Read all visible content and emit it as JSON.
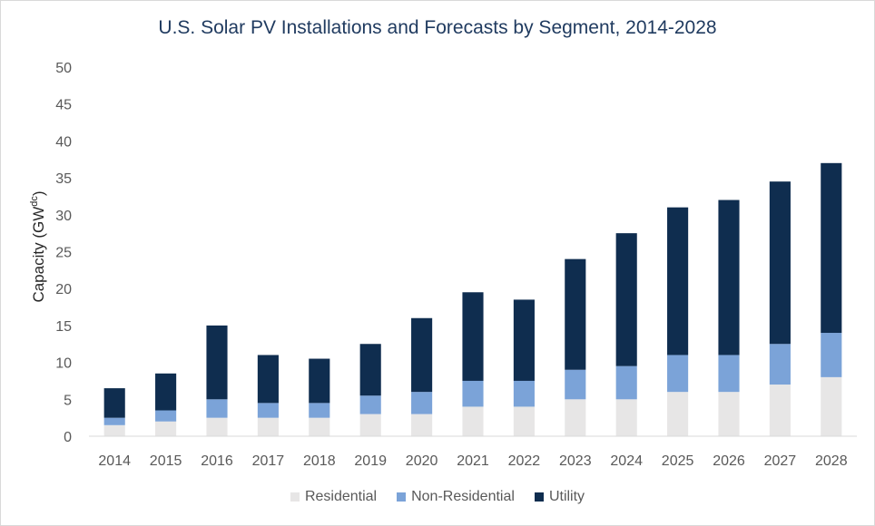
{
  "chart_data": {
    "type": "bar",
    "stacked": true,
    "title": "U.S. Solar PV Installations and Forecasts by Segment, 2014-2028",
    "ylabel": "Capacity (GW",
    "ylabel_superscript": "dc",
    "ylabel_close": ")",
    "xlabel": "",
    "ylim": [
      0,
      50
    ],
    "yticks": [
      0,
      5,
      10,
      15,
      20,
      25,
      30,
      35,
      40,
      45,
      50
    ],
    "grid": false,
    "legend_position": "bottom",
    "categories": [
      "2014",
      "2015",
      "2016",
      "2017",
      "2018",
      "2019",
      "2020",
      "2021",
      "2022",
      "2023",
      "2024",
      "2025",
      "2026",
      "2027",
      "2028"
    ],
    "series": [
      {
        "name": "Residential",
        "color": "#e7e6e6",
        "values": [
          1.5,
          2,
          2.5,
          2.5,
          2.5,
          3,
          3,
          4,
          4,
          5,
          5,
          6,
          6,
          7,
          8
        ]
      },
      {
        "name": "Non-Residential",
        "color": "#7ba3d8",
        "values": [
          1,
          1.5,
          2.5,
          2,
          2,
          2.5,
          3,
          3.5,
          3.5,
          4,
          4.5,
          5,
          5,
          5.5,
          6
        ]
      },
      {
        "name": "Utility",
        "color": "#0f2d4f",
        "values": [
          4,
          5,
          10,
          6.5,
          6,
          7,
          10,
          12,
          11,
          15,
          18,
          20,
          21,
          22,
          23
        ]
      }
    ]
  }
}
